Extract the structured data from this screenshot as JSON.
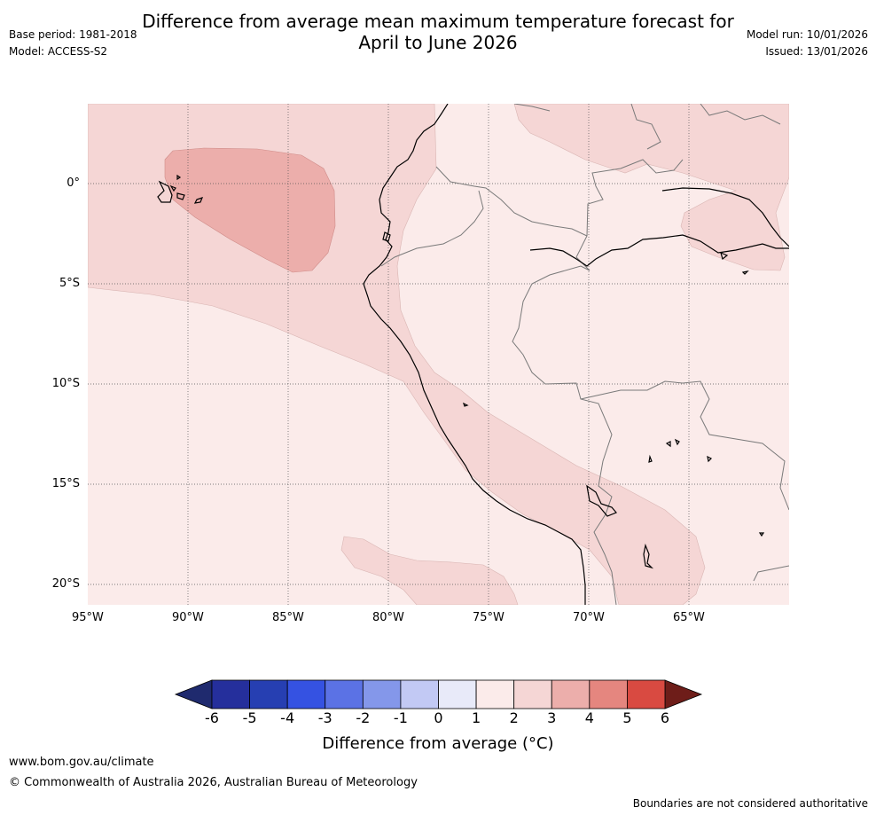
{
  "title_line1": "Difference from average mean maximum temperature forecast for",
  "title_line2": "April to June 2026",
  "base_period": "Base period: 1981-2018",
  "model": "Model: ACCESS-S2",
  "model_run": "Model run: 10/01/2026",
  "issued": "Issued: 13/01/2026",
  "lat_labels": [
    "0°",
    "5°S",
    "10°S",
    "15°S",
    "20°S"
  ],
  "lon_labels": [
    "95°W",
    "90°W",
    "85°W",
    "80°W",
    "75°W",
    "70°W",
    "65°W"
  ],
  "colorbar": {
    "ticks": [
      "-6",
      "-5",
      "-4",
      "-3",
      "-2",
      "-1",
      "0",
      "1",
      "2",
      "3",
      "4",
      "5",
      "6"
    ],
    "colors": [
      "#252f9c",
      "#263fb2",
      "#3552e2",
      "#5b72e5",
      "#8497ea",
      "#c2c9f4",
      "#e8eaf9",
      "#fbebea",
      "#f5d6d5",
      "#ecaeab",
      "#e5867f",
      "#d94a41",
      "#ab2a24"
    ],
    "low_color": "#1f2a6e",
    "high_color": "#6e1d19",
    "title": "Difference from average (°C)"
  },
  "footer": {
    "url": "www.bom.gov.au/climate",
    "copyright": "© Commonwealth of Australia 2026, Australian Bureau of Meteorology",
    "disclaimer": "Boundaries are not considered authoritative"
  },
  "map": {
    "region": "Peru and surrounding Eastern Pacific",
    "lon_range": [
      -95,
      -60
    ],
    "lat_range": [
      -21,
      4
    ],
    "anomaly_classes": [
      {
        "range": "0 to 1",
        "color": "#fbebea"
      },
      {
        "range": "1 to 2",
        "color": "#f5d6d5"
      },
      {
        "range": "2 to 3",
        "color": "#ecaeab"
      }
    ]
  }
}
